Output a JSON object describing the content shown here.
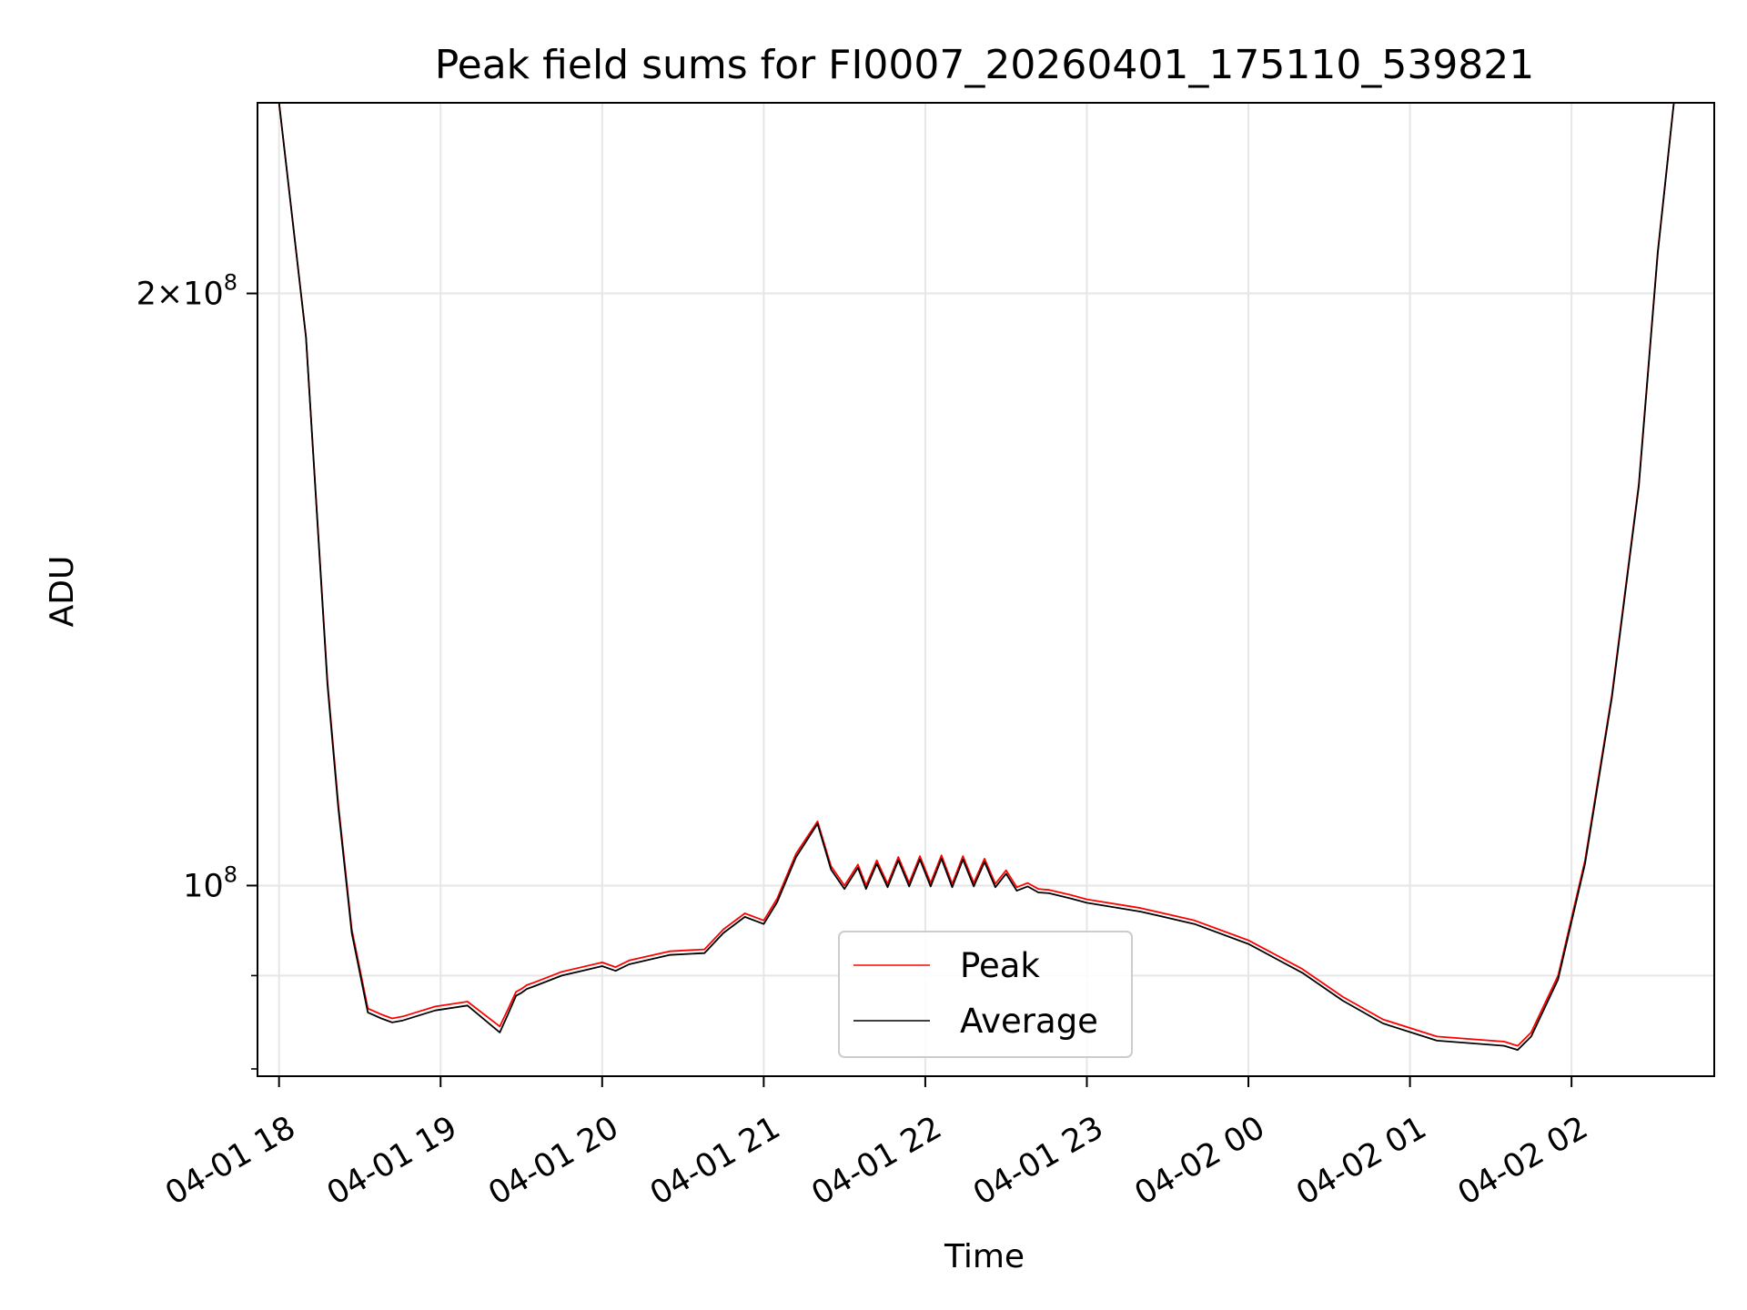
{
  "chart_data": {
    "type": "line",
    "title": "Peak field sums for FI0007_20260401_175110_539821",
    "xlabel": "Time",
    "ylabel": "ADU",
    "yscale": "log",
    "grid": true,
    "legend_position": "lower-center",
    "xlim": [
      "2026-04-01 17:52",
      "2026-04-02 02:53"
    ],
    "ylim": [
      80000000,
      250000000
    ],
    "x_ticks": [
      {
        "value": "2026-04-01 18:00",
        "label": "04-01 18"
      },
      {
        "value": "2026-04-01 19:00",
        "label": "04-01 19"
      },
      {
        "value": "2026-04-01 20:00",
        "label": "04-01 20"
      },
      {
        "value": "2026-04-01 21:00",
        "label": "04-01 21"
      },
      {
        "value": "2026-04-01 22:00",
        "label": "04-01 22"
      },
      {
        "value": "2026-04-01 23:00",
        "label": "04-01 23"
      },
      {
        "value": "2026-04-02 00:00",
        "label": "04-02 00"
      },
      {
        "value": "2026-04-02 01:00",
        "label": "04-02 01"
      },
      {
        "value": "2026-04-02 02:00",
        "label": "04-02 02"
      }
    ],
    "y_ticks": [
      {
        "value": 200000000,
        "label_mantissa": "2",
        "label_times": "×",
        "label_base": "10",
        "label_exp": "8"
      },
      {
        "value": 100000000,
        "label_mantissa": "",
        "label_times": "",
        "label_base": "10",
        "label_exp": "8"
      }
    ],
    "y_minor_ticks": [
      90000000
    ],
    "series": [
      {
        "name": "Peak",
        "color": "#ff0000",
        "x": [
          "2026-04-01 17:52",
          "2026-04-01 18:00",
          "2026-04-01 18:10",
          "2026-04-01 18:18",
          "2026-04-01 18:22",
          "2026-04-01 18:27",
          "2026-04-01 18:33",
          "2026-04-01 18:38",
          "2026-04-01 18:42",
          "2026-04-01 18:46",
          "2026-04-01 18:52",
          "2026-04-01 18:58",
          "2026-04-01 19:10",
          "2026-04-01 19:22",
          "2026-04-01 19:25",
          "2026-04-01 19:28",
          "2026-04-01 19:30",
          "2026-04-01 19:32",
          "2026-04-01 19:35",
          "2026-04-01 19:45",
          "2026-04-01 20:00",
          "2026-04-01 20:05",
          "2026-04-01 20:10",
          "2026-04-01 20:25",
          "2026-04-01 20:38",
          "2026-04-01 20:45",
          "2026-04-01 20:53",
          "2026-04-01 21:00",
          "2026-04-01 21:05",
          "2026-04-01 21:12",
          "2026-04-01 21:20",
          "2026-04-01 21:25",
          "2026-04-01 21:30",
          "2026-04-01 21:35",
          "2026-04-01 21:38",
          "2026-04-01 21:42",
          "2026-04-01 21:46",
          "2026-04-01 21:50",
          "2026-04-01 21:54",
          "2026-04-01 21:58",
          "2026-04-01 22:02",
          "2026-04-01 22:06",
          "2026-04-01 22:10",
          "2026-04-01 22:14",
          "2026-04-01 22:18",
          "2026-04-01 22:22",
          "2026-04-01 22:26",
          "2026-04-01 22:30",
          "2026-04-01 22:34",
          "2026-04-01 22:38",
          "2026-04-01 22:42",
          "2026-04-01 22:46",
          "2026-04-01 22:50",
          "2026-04-01 22:54",
          "2026-04-01 23:00",
          "2026-04-01 23:20",
          "2026-04-01 23:40",
          "2026-04-02 00:00",
          "2026-04-02 00:20",
          "2026-04-02 00:35",
          "2026-04-02 00:50",
          "2026-04-02 01:10",
          "2026-04-02 01:35",
          "2026-04-02 01:40",
          "2026-04-02 01:45",
          "2026-04-02 01:55",
          "2026-04-02 02:05",
          "2026-04-02 02:15",
          "2026-04-02 02:25",
          "2026-04-02 02:32",
          "2026-04-02 02:38",
          "2026-04-02 02:53"
        ],
        "values": [
          250000000,
          250000000,
          190000000,
          127000000,
          110000000,
          95000000,
          86600000,
          86000000,
          85600000,
          85800000,
          86300000,
          86800000,
          87300000,
          84800000,
          86500000,
          88300000,
          88600000,
          89000000,
          89300000,
          90400000,
          91400000,
          90900000,
          91600000,
          92600000,
          92800000,
          95000000,
          96800000,
          96000000,
          98500000,
          103800000,
          107800000,
          102300000,
          100000000,
          102500000,
          100000000,
          103000000,
          100200000,
          103400000,
          100300000,
          103500000,
          100300000,
          103600000,
          100200000,
          103500000,
          100300000,
          103200000,
          100200000,
          101800000,
          99800000,
          100300000,
          99600000,
          99500000,
          99200000,
          98900000,
          98400000,
          97400000,
          96000000,
          93800000,
          90700000,
          87800000,
          85500000,
          83800000,
          83300000,
          82900000,
          84200000,
          90000000,
          103000000,
          125000000,
          160000000,
          210000000,
          250000000,
          250000000
        ]
      },
      {
        "name": "Average",
        "color": "#000000",
        "x": [
          "2026-04-01 17:52",
          "2026-04-01 18:00",
          "2026-04-01 18:10",
          "2026-04-01 18:18",
          "2026-04-01 18:22",
          "2026-04-01 18:27",
          "2026-04-01 18:33",
          "2026-04-01 18:38",
          "2026-04-01 18:42",
          "2026-04-01 18:46",
          "2026-04-01 18:52",
          "2026-04-01 18:58",
          "2026-04-01 19:10",
          "2026-04-01 19:22",
          "2026-04-01 19:25",
          "2026-04-01 19:28",
          "2026-04-01 19:30",
          "2026-04-01 19:32",
          "2026-04-01 19:35",
          "2026-04-01 19:45",
          "2026-04-01 20:00",
          "2026-04-01 20:05",
          "2026-04-01 20:10",
          "2026-04-01 20:25",
          "2026-04-01 20:38",
          "2026-04-01 20:45",
          "2026-04-01 20:53",
          "2026-04-01 21:00",
          "2026-04-01 21:05",
          "2026-04-01 21:12",
          "2026-04-01 21:20",
          "2026-04-01 21:25",
          "2026-04-01 21:30",
          "2026-04-01 21:35",
          "2026-04-01 21:38",
          "2026-04-01 21:42",
          "2026-04-01 21:46",
          "2026-04-01 21:50",
          "2026-04-01 21:54",
          "2026-04-01 21:58",
          "2026-04-01 22:02",
          "2026-04-01 22:06",
          "2026-04-01 22:10",
          "2026-04-01 22:14",
          "2026-04-01 22:18",
          "2026-04-01 22:22",
          "2026-04-01 22:26",
          "2026-04-01 22:30",
          "2026-04-01 22:34",
          "2026-04-01 22:38",
          "2026-04-01 22:42",
          "2026-04-01 22:46",
          "2026-04-01 22:50",
          "2026-04-01 22:54",
          "2026-04-01 23:00",
          "2026-04-01 23:20",
          "2026-04-01 23:40",
          "2026-04-02 00:00",
          "2026-04-02 00:20",
          "2026-04-02 00:35",
          "2026-04-02 00:50",
          "2026-04-02 01:10",
          "2026-04-02 01:35",
          "2026-04-02 01:40",
          "2026-04-02 01:45",
          "2026-04-02 01:55",
          "2026-04-02 02:05",
          "2026-04-02 02:15",
          "2026-04-02 02:25",
          "2026-04-02 02:32",
          "2026-04-02 02:38",
          "2026-04-02 02:53"
        ],
        "values": [
          250000000,
          250000000,
          190000000,
          126500000,
          109500000,
          94600000,
          86200000,
          85600000,
          85200000,
          85400000,
          85900000,
          86400000,
          86900000,
          84200000,
          86000000,
          87900000,
          88200000,
          88600000,
          88900000,
          90000000,
          91000000,
          90500000,
          91200000,
          92200000,
          92400000,
          94600000,
          96400000,
          95600000,
          98100000,
          103400000,
          107500000,
          101900000,
          99600000,
          102100000,
          99600000,
          102600000,
          99800000,
          103000000,
          99900000,
          103100000,
          99900000,
          103200000,
          99800000,
          103100000,
          99900000,
          102800000,
          99800000,
          101400000,
          99400000,
          99900000,
          99200000,
          99100000,
          98800000,
          98500000,
          98000000,
          97000000,
          95600000,
          93400000,
          90300000,
          87400000,
          85100000,
          83400000,
          82900000,
          82500000,
          83800000,
          89600000,
          102600000,
          124600000,
          159600000,
          209600000,
          250000000,
          250000000
        ]
      }
    ]
  }
}
